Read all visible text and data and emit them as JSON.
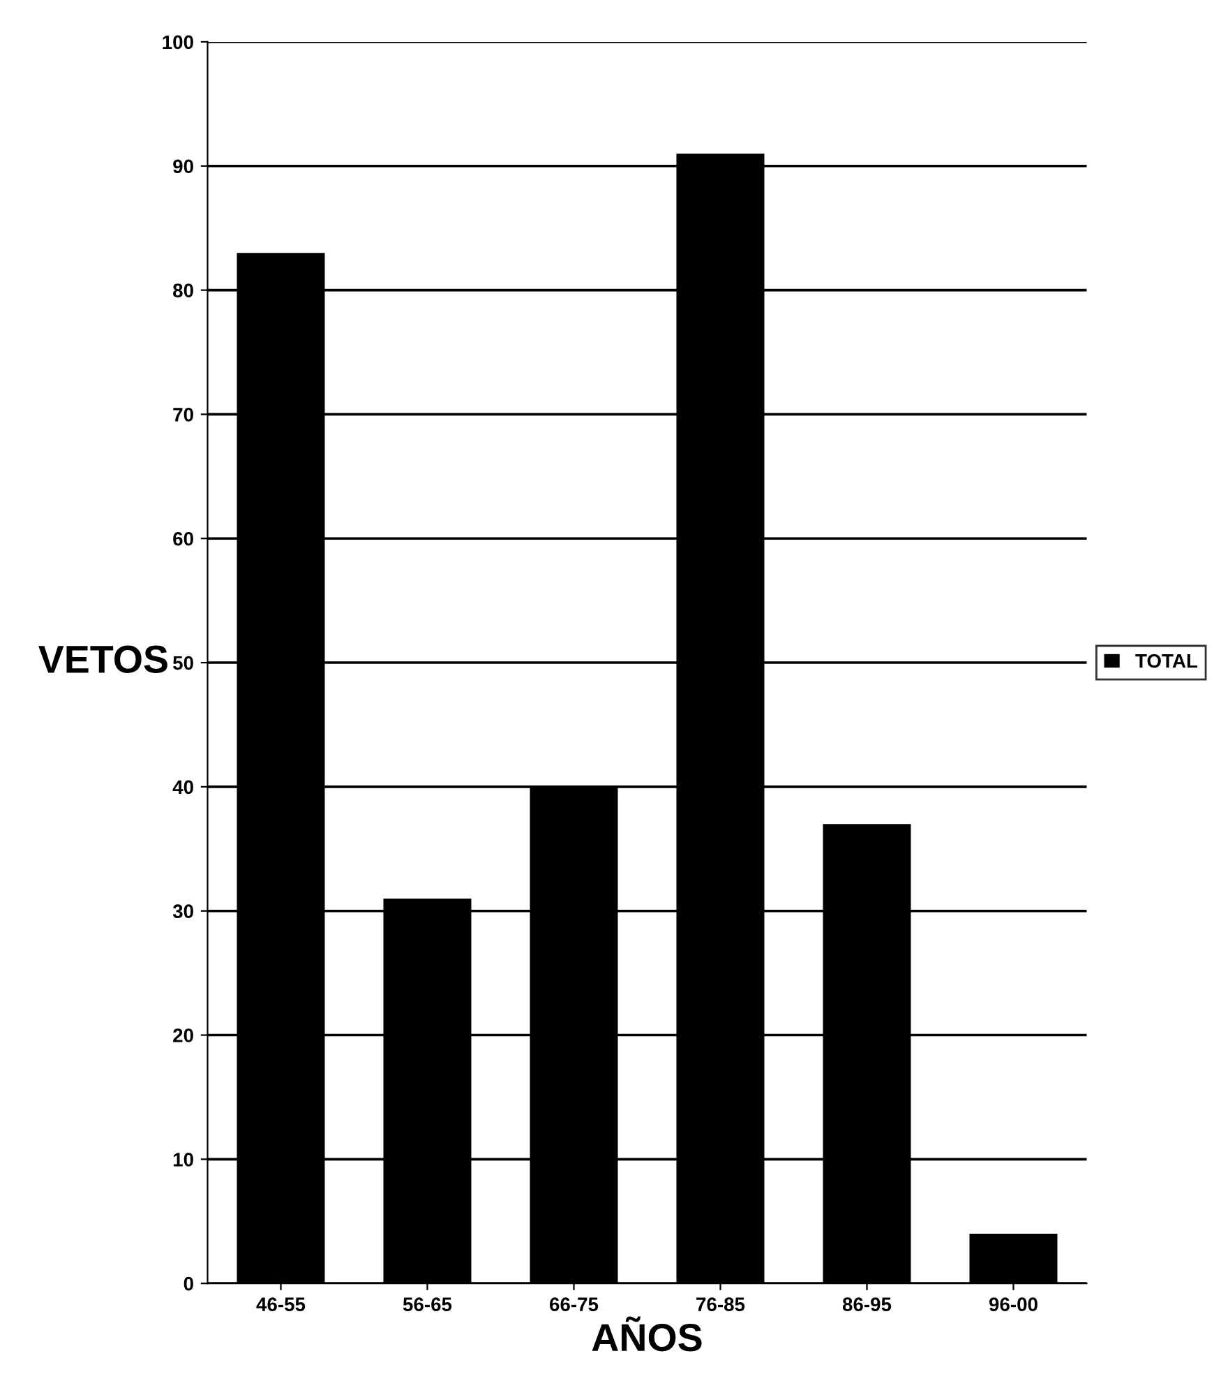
{
  "chart_data": {
    "type": "bar",
    "xlabel": "AÑOS",
    "ylabel": "VETOS",
    "categories": [
      "46-55",
      "56-65",
      "66-75",
      "76-85",
      "86-95",
      "96-00"
    ],
    "series": [
      {
        "name": "TOTAL",
        "color": "#000000",
        "values": [
          83,
          31,
          40,
          91,
          37,
          4
        ]
      }
    ],
    "ylim": [
      0,
      100
    ],
    "yticks": [
      0,
      10,
      20,
      30,
      40,
      50,
      60,
      70,
      80,
      90,
      100
    ],
    "grid": "y",
    "legend": "right"
  }
}
